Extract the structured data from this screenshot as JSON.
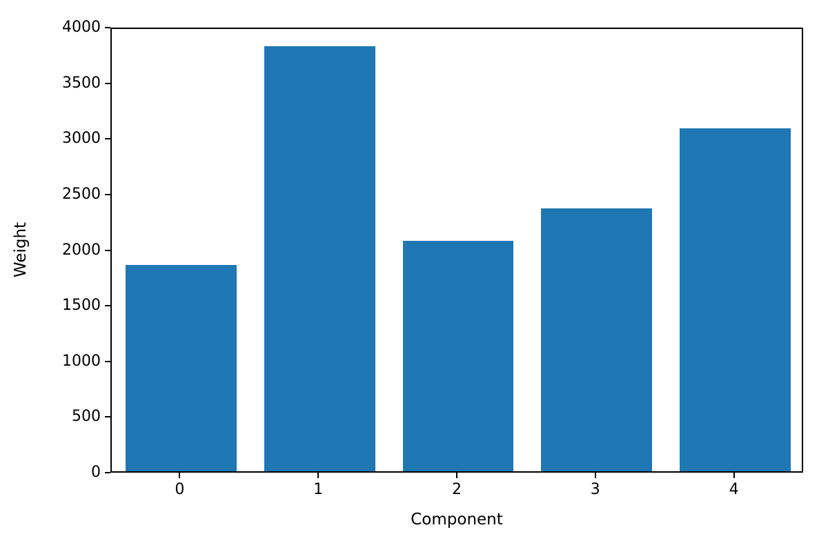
{
  "chart_data": {
    "type": "bar",
    "title": "",
    "xlabel": "Component",
    "ylabel": "Weight",
    "categories": [
      "0",
      "1",
      "2",
      "3",
      "4"
    ],
    "values": [
      1860,
      3830,
      2080,
      2370,
      3090
    ],
    "ylim": [
      0,
      4000
    ],
    "yticks": [
      0,
      500,
      1000,
      1500,
      2000,
      2500,
      3000,
      3500,
      4000
    ],
    "bar_color": "#1f77b4",
    "grid": "off",
    "legend": "none",
    "bar_width_fraction": 0.8
  }
}
